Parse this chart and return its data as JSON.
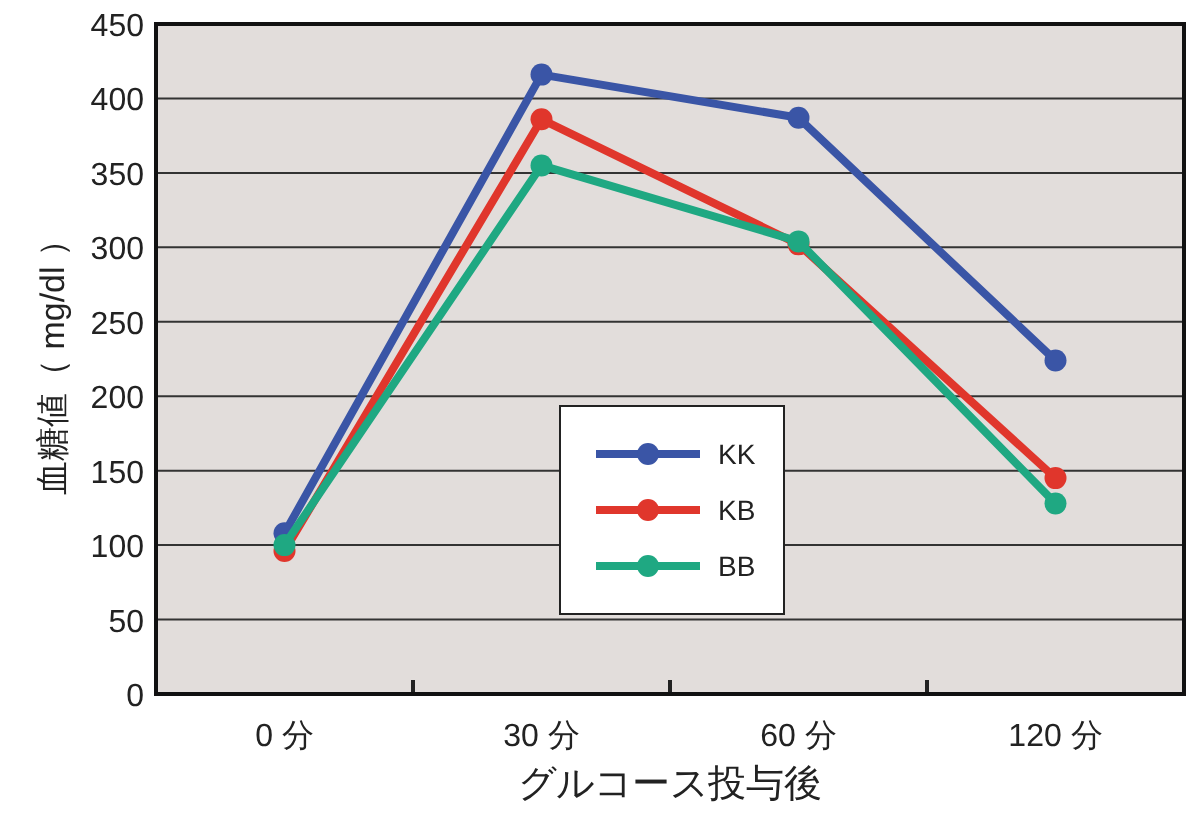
{
  "chart_data": {
    "type": "line",
    "xlabel": "グルコース投与後",
    "ylabel": "血糖値（ mg/dl ）",
    "categories": [
      "0 分",
      "30 分",
      "60 分",
      "120 分"
    ],
    "series": [
      {
        "name": "KK",
        "color": "#3a55a6",
        "values": [
          108,
          416,
          387,
          224
        ]
      },
      {
        "name": "KB",
        "color": "#e0362c",
        "values": [
          96,
          386,
          302,
          145
        ]
      },
      {
        "name": "BB",
        "color": "#1fa882",
        "values": [
          100,
          355,
          304,
          128
        ]
      }
    ],
    "ylim": [
      0,
      450
    ],
    "yticks": [
      0,
      50,
      100,
      150,
      200,
      250,
      300,
      350,
      400,
      450
    ],
    "grid": "y",
    "legend": "center",
    "marker": "circle",
    "line_style": "solid"
  }
}
